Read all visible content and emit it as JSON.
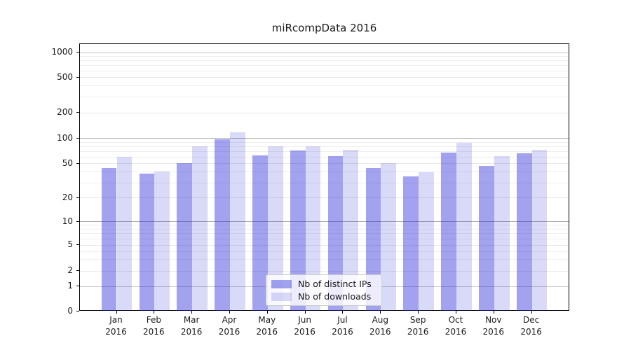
{
  "chart_data": {
    "type": "bar",
    "title": "miRcompData 2016",
    "categories": [
      "Jan",
      "Feb",
      "Mar",
      "Apr",
      "May",
      "Jun",
      "Jul",
      "Aug",
      "Sep",
      "Oct",
      "Nov",
      "Dec"
    ],
    "x_tick_second_line": "2016",
    "series": [
      {
        "name": "Nb of distinct IPs",
        "values": [
          44,
          38,
          50,
          97,
          62,
          71,
          61,
          44,
          35,
          67,
          47,
          66
        ]
      },
      {
        "name": "Nb of downloads",
        "values": [
          60,
          40,
          80,
          117,
          80,
          79,
          72,
          50,
          39,
          88,
          61,
          72
        ]
      }
    ],
    "y_ticks": [
      0,
      1,
      2,
      5,
      10,
      20,
      50,
      100,
      200,
      500,
      1000
    ],
    "y_scale": "symlog",
    "ylim": [
      0,
      1236
    ],
    "grid": true,
    "legend_position": "lower center"
  },
  "colors": {
    "bar_distinct_ips": "rgba(30,30,215,0.41)",
    "bar_downloads": "rgba(30,30,215,0.17)",
    "grid_major": "#ababab",
    "grid_mid": "#c9c9c9",
    "grid_light": "#e7e7e7",
    "grid_minor": "#efefef",
    "spine": "#000000",
    "text": "#1a1a1a"
  }
}
